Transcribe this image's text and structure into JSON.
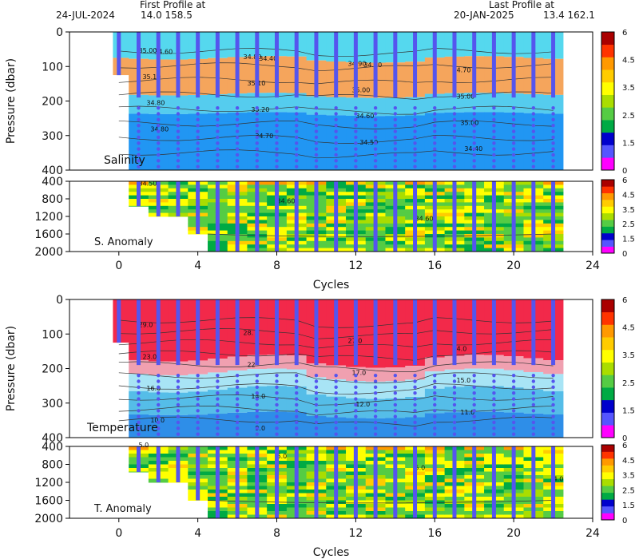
{
  "header": {
    "first_label": "First Profile at",
    "first_date": "24-JUL-2024",
    "first_coords": "14.0  158.5",
    "last_label": "Last Profile at",
    "last_date": "20-JAN-2025",
    "last_coords": "13.4  162.1"
  },
  "chart_data": [
    {
      "type": "heatmap",
      "panel": "salinity",
      "inset_label": "Salinity",
      "ylabel": "Pressure (dbar)",
      "xlabel": "Cycles",
      "xlim": [
        -2.5,
        24
      ],
      "upper_ylim": [
        0,
        400
      ],
      "upper_yticks": [
        0,
        100,
        200,
        300,
        400
      ],
      "lower_ylim": [
        400,
        2000
      ],
      "lower_yticks": [
        400,
        800,
        1200,
        1600,
        2000
      ],
      "xticks": [
        0,
        4,
        8,
        12,
        16,
        20,
        24
      ],
      "cycles": [
        0,
        1,
        2,
        3,
        4,
        5,
        6,
        7,
        8,
        9,
        10,
        11,
        12,
        13,
        14,
        15,
        16,
        17,
        18,
        19,
        20,
        21,
        22
      ],
      "contour_labels": [
        "35.00",
        "34.80",
        "34.90",
        "34.70",
        "35.10",
        "35.10",
        "35.00",
        "35.00",
        "34.80",
        "35.20",
        "34.60",
        "35.00",
        "34.80",
        "34.70",
        "34.50",
        "34.40",
        "34.60",
        "34.40",
        "34.30"
      ],
      "anomaly_label": "S. Anomaly",
      "anomaly_contour_labels": [
        "34.50",
        "34.60",
        "34.60"
      ],
      "colorbar_ticks": [
        "6",
        "4.5",
        "3.5",
        "2.5",
        "1.5",
        "0"
      ]
    },
    {
      "type": "heatmap",
      "panel": "temperature",
      "inset_label": "Temperature",
      "ylabel": "Pressure (dbar)",
      "xlabel": "Cycles",
      "xlim": [
        -2.5,
        24
      ],
      "upper_ylim": [
        0,
        400
      ],
      "upper_yticks": [
        0,
        100,
        200,
        300,
        400
      ],
      "lower_ylim": [
        400,
        2000
      ],
      "lower_yticks": [
        400,
        800,
        1200,
        1600,
        2000
      ],
      "xticks": [
        0,
        4,
        8,
        12,
        16,
        20,
        24
      ],
      "cycles": [
        0,
        1,
        2,
        3,
        4,
        5,
        6,
        7,
        8,
        9,
        10,
        11,
        12,
        13,
        14,
        15,
        16,
        17,
        18,
        19,
        20,
        21,
        22
      ],
      "contour_labels": [
        "29.0",
        "28.",
        "27.0",
        "24.0",
        "23.0",
        "22",
        "17.0",
        "15.0",
        "16.0",
        "14.0",
        "12.0",
        "11.0",
        "10.0",
        "9.0"
      ],
      "anomaly_label": "T. Anomaly",
      "anomaly_contour_labels": [
        "5.0",
        "6.0",
        "5.0",
        "4.0",
        "3."
      ],
      "colorbar_ticks": [
        "6",
        "4.5",
        "3.5",
        "2.5",
        "1.5",
        "0"
      ]
    }
  ],
  "colors": {
    "colorbar": [
      "#ff00ff",
      "#5555ff",
      "#0000cc",
      "#00aa44",
      "#55cc44",
      "#aadd00",
      "#ffff00",
      "#ffcc00",
      "#ff9900",
      "#ff3300",
      "#aa0000"
    ],
    "profile": "#5555ee",
    "sal_fresh": "#2196f3",
    "sal_mid": "#55ccee",
    "sal_salty": "#f5a55c",
    "temp_warm": "#f2294a",
    "temp_mid": "#f0a0b0",
    "temp_cool": "#2e8ee8"
  }
}
